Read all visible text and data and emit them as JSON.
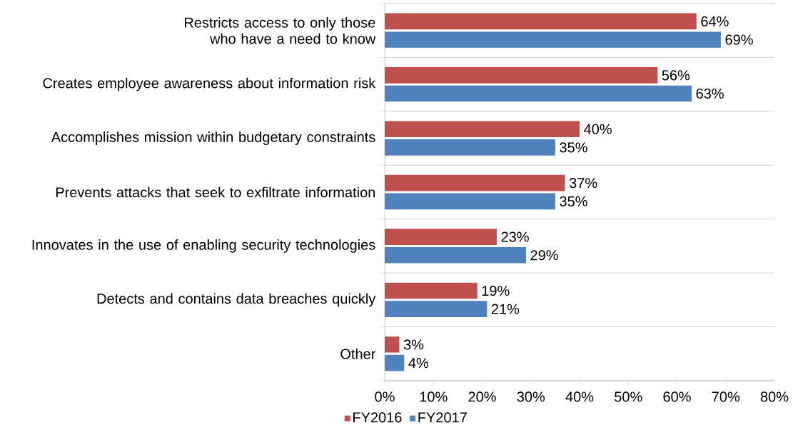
{
  "chart_data": {
    "type": "bar",
    "orientation": "horizontal",
    "categories": [
      "Restricts access to only those who have a need to know",
      "Creates employee awareness about information risk",
      "Accomplishes mission within budgetary constraints",
      "Prevents attacks that seek to exfiltrate information",
      "Innovates in the use of enabling security technologies",
      "Detects and contains data breaches quickly",
      "Other"
    ],
    "series": [
      {
        "name": "FY2016",
        "color": "#c0504d",
        "values": [
          64,
          56,
          40,
          37,
          23,
          19,
          3
        ],
        "value_labels": [
          "64%",
          "56%",
          "40%",
          "37%",
          "23%",
          "19%",
          "3%"
        ]
      },
      {
        "name": "FY2017",
        "color": "#4f81bd",
        "values": [
          69,
          63,
          35,
          35,
          29,
          21,
          4
        ],
        "value_labels": [
          "69%",
          "63%",
          "35%",
          "35%",
          "29%",
          "21%",
          "4%"
        ]
      }
    ],
    "xlim": [
      0,
      80
    ],
    "xticks": [
      {
        "value": 0,
        "label": "0%"
      },
      {
        "value": 10,
        "label": "10%"
      },
      {
        "value": 20,
        "label": "20%"
      },
      {
        "value": 30,
        "label": "30%"
      },
      {
        "value": 40,
        "label": "40%"
      },
      {
        "value": 50,
        "label": "50%"
      },
      {
        "value": 60,
        "label": "60%"
      },
      {
        "value": 70,
        "label": "70%"
      },
      {
        "value": 80,
        "label": "80%"
      }
    ],
    "grid": "y",
    "legend": "bottom"
  }
}
